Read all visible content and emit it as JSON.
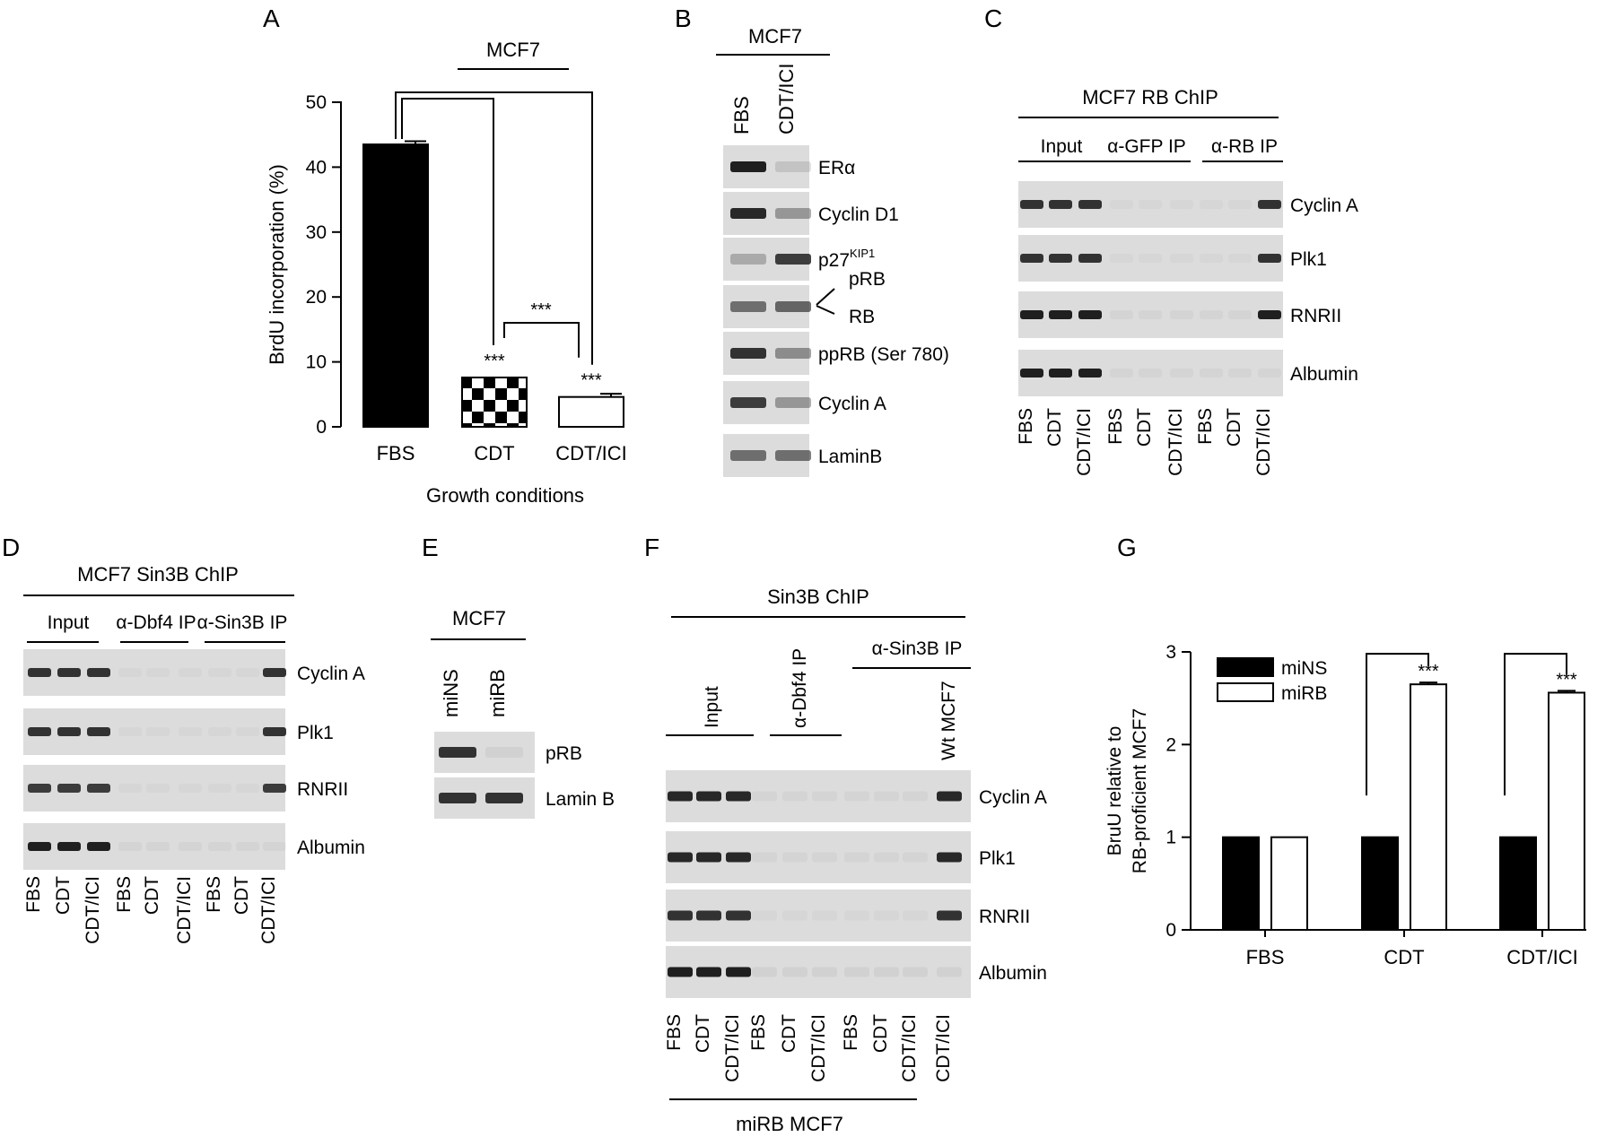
{
  "panels": {
    "A": {
      "label": "A",
      "header": "MCF7",
      "significance_label": "***",
      "chart_data": {
        "type": "bar",
        "title": "",
        "categories": [
          "FBS",
          "CDT",
          "CDT/ICI"
        ],
        "values": [
          43.5,
          7.6,
          4.6
        ],
        "errors": [
          0.5,
          0.0,
          0.5
        ],
        "fills": [
          "solid",
          "checkered",
          "white"
        ],
        "significance": [
          "",
          "***",
          "***"
        ],
        "pairwise": [
          {
            "from": "FBS",
            "to": "CDT",
            "label": ""
          },
          {
            "from": "FBS",
            "to": "CDT/ICI",
            "label": ""
          },
          {
            "from": "CDT",
            "to": "CDT/ICI",
            "label": "***"
          }
        ],
        "xlabel": "Growth conditions",
        "ylabel": "BrdU incorporation (%)",
        "ylim": [
          0,
          50
        ],
        "yticks": [
          0,
          10,
          20,
          30,
          40,
          50
        ],
        "grid": false
      }
    },
    "B": {
      "label": "B",
      "header": "MCF7",
      "lanes": [
        "FBS",
        "CDT/ICI"
      ],
      "blots": [
        {
          "label": "ERα",
          "bands": [
            0.95,
            0.12
          ]
        },
        {
          "label": "Cyclin D1",
          "bands": [
            0.9,
            0.35
          ]
        },
        {
          "label": "p27",
          "label_sup": "KIP1",
          "bands": [
            0.25,
            0.8
          ]
        },
        {
          "label": "",
          "bands": [
            0.55,
            0.6
          ]
        },
        {
          "label": "ppRB (Ser 780)",
          "bands": [
            0.85,
            0.4
          ]
        },
        {
          "label": "Cyclin A",
          "bands": [
            0.8,
            0.35
          ]
        },
        {
          "label": "LaminB",
          "bands": [
            0.55,
            0.55
          ]
        }
      ],
      "prb_label": "pRB",
      "rb_label": "RB"
    },
    "C": {
      "label": "C",
      "header": "MCF7 RB ChIP",
      "groups": [
        "Input",
        "α-GFP IP",
        "α-RB IP"
      ],
      "lanes": [
        "FBS",
        "CDT",
        "CDT/ICI",
        "FBS",
        "CDT",
        "CDT/ICI",
        "FBS",
        "CDT",
        "CDT/ICI"
      ],
      "blots": [
        {
          "label": "Cyclin A",
          "bands": [
            0.85,
            0.85,
            0.85,
            0.03,
            0.03,
            0.03,
            0.03,
            0.03,
            0.85
          ]
        },
        {
          "label": "Plk1",
          "bands": [
            0.85,
            0.85,
            0.85,
            0.03,
            0.03,
            0.03,
            0.03,
            0.03,
            0.85
          ]
        },
        {
          "label": "RNRII",
          "bands": [
            0.95,
            0.95,
            0.95,
            0.04,
            0.04,
            0.04,
            0.04,
            0.04,
            0.95
          ]
        },
        {
          "label": "Albumin",
          "bands": [
            0.95,
            0.95,
            0.95,
            0.04,
            0.04,
            0.04,
            0.04,
            0.04,
            0.04
          ]
        }
      ]
    },
    "D": {
      "label": "D",
      "header": "MCF7 Sin3B ChIP",
      "groups": [
        "Input",
        "α-Dbf4 IP",
        "α-Sin3B IP"
      ],
      "lanes": [
        "FBS",
        "CDT",
        "CDT/ICI",
        "FBS",
        "CDT",
        "CDT/ICI",
        "FBS",
        "CDT",
        "CDT/ICI"
      ],
      "blots": [
        {
          "label": "Cyclin A",
          "bands": [
            0.85,
            0.85,
            0.85,
            0.03,
            0.03,
            0.03,
            0.03,
            0.03,
            0.85
          ]
        },
        {
          "label": "Plk1",
          "bands": [
            0.85,
            0.85,
            0.85,
            0.03,
            0.03,
            0.03,
            0.03,
            0.03,
            0.85
          ]
        },
        {
          "label": "RNRII",
          "bands": [
            0.8,
            0.8,
            0.8,
            0.03,
            0.03,
            0.03,
            0.03,
            0.03,
            0.8
          ]
        },
        {
          "label": "Albumin",
          "bands": [
            0.95,
            0.95,
            0.95,
            0.04,
            0.04,
            0.04,
            0.04,
            0.04,
            0.04
          ]
        }
      ]
    },
    "E": {
      "label": "E",
      "header": "MCF7",
      "lanes": [
        "miNS",
        "miRB"
      ],
      "blots": [
        {
          "label": "pRB",
          "bands": [
            0.85,
            0.05
          ]
        },
        {
          "label": "Lamin B",
          "bands": [
            0.85,
            0.85
          ]
        }
      ]
    },
    "F": {
      "label": "F",
      "header": "Sin3B ChIP",
      "groups": [
        "Input",
        "α-Dbf4 IP",
        "α-Sin3B IP"
      ],
      "wt_label": "Wt MCF7",
      "lanes": [
        "FBS",
        "CDT",
        "CDT/ICI",
        "FBS",
        "CDT",
        "CDT/ICI",
        "FBS",
        "CDT",
        "CDT/ICI",
        "CDT/ICI"
      ],
      "footer": "miRB  MCF7",
      "blots": [
        {
          "label": "Cyclin A",
          "bands": [
            0.9,
            0.9,
            0.9,
            0.04,
            0.04,
            0.04,
            0.04,
            0.04,
            0.04,
            0.9
          ]
        },
        {
          "label": "Plk1",
          "bands": [
            0.9,
            0.9,
            0.9,
            0.04,
            0.04,
            0.04,
            0.04,
            0.04,
            0.04,
            0.9
          ]
        },
        {
          "label": "RNRII",
          "bands": [
            0.85,
            0.85,
            0.85,
            0.03,
            0.03,
            0.03,
            0.03,
            0.03,
            0.03,
            0.85
          ]
        },
        {
          "label": "Albumin",
          "bands": [
            0.95,
            0.95,
            0.95,
            0.05,
            0.05,
            0.05,
            0.05,
            0.05,
            0.05,
            0.05
          ]
        }
      ]
    },
    "G": {
      "label": "G",
      "chart_data": {
        "type": "bar",
        "title": "",
        "categories": [
          "FBS",
          "CDT",
          "CDT/ICI"
        ],
        "series": [
          {
            "name": "miNS",
            "values": [
              1.0,
              1.0,
              1.0
            ],
            "fill": "solid"
          },
          {
            "name": "miRB",
            "values": [
              1.0,
              2.65,
              2.56
            ],
            "errors": [
              0.0,
              0.02,
              0.02
            ],
            "fill": "white"
          }
        ],
        "significance": [
          "",
          "***",
          "***"
        ],
        "ylabel": "BruU relative to\nRB-proficient MCF7",
        "xlabel": "",
        "ylim": [
          0,
          3
        ],
        "yticks": [
          0,
          1,
          2,
          3
        ],
        "legend": "top-left",
        "grid": false
      }
    }
  }
}
